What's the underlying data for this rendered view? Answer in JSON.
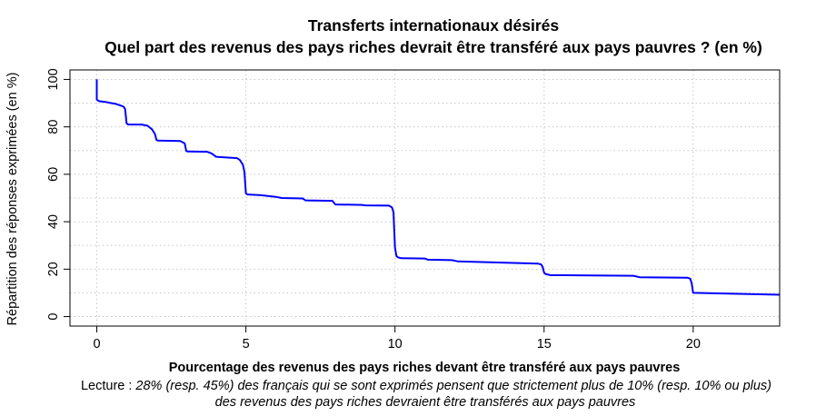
{
  "chart_data": {
    "type": "line",
    "title": "Transferts internationaux désirés",
    "subtitle": "Quel part des revenus des pays riches devrait être transféré aux pays pauvres ? (en %)",
    "xlabel": "Pourcentage des revenus des pays riches devant être transféré aux pays pauvres",
    "ylabel": "Répartition des réponses exprimées (en %)",
    "note_prefix": "Lecture : ",
    "note_line1": "28% (resp. 45%) des français qui se sont exprimés pensent que strictement plus de 10% (resp. 10% ou plus)",
    "note_line2": "des revenus des pays riches devraient être transférés aux pays pauvres",
    "xlim": [
      -0.9,
      22.9
    ],
    "ylim": [
      -4,
      104
    ],
    "xticks": [
      0,
      5,
      10,
      15,
      20
    ],
    "yticks": [
      0,
      20,
      40,
      60,
      80,
      100
    ],
    "grid": true,
    "series": [
      {
        "color": "#0000ff",
        "x": [
          0,
          0,
          0.05,
          0.1,
          0.3,
          0.5,
          0.6,
          0.8,
          0.9,
          0.95,
          1.0,
          1.05,
          1.5,
          1.7,
          1.85,
          1.95,
          2.0,
          2.05,
          2.8,
          2.95,
          3.0,
          3.05,
          3.7,
          3.85,
          4.0,
          4.7,
          4.8,
          4.9,
          4.95,
          5.0,
          5.05,
          5.5,
          6.0,
          6.2,
          6.9,
          7.0,
          7.9,
          8.0,
          8.9,
          9.0,
          9.8,
          9.9,
          9.95,
          10.0,
          10.05,
          10.1,
          10.2,
          11.0,
          11.1,
          11.9,
          12.1,
          14.8,
          14.9,
          14.95,
          15.0,
          15.05,
          15.2,
          18.0,
          18.2,
          19.8,
          19.9,
          19.95,
          20.0,
          22.9
        ],
        "y": [
          100,
          91.5,
          91.0,
          90.8,
          90.5,
          90.0,
          89.8,
          89.0,
          88.5,
          87.5,
          81.5,
          81.0,
          81.0,
          80.5,
          79.0,
          77.0,
          74.5,
          74.2,
          74.0,
          73.0,
          69.8,
          69.6,
          69.5,
          68.8,
          67.4,
          66.8,
          66.0,
          64.0,
          61.0,
          52.0,
          51.5,
          51.2,
          50.5,
          50.0,
          49.8,
          49.0,
          48.8,
          47.3,
          47.1,
          46.9,
          46.8,
          46.0,
          44.0,
          29.0,
          25.5,
          25.0,
          24.6,
          24.5,
          24.0,
          23.8,
          23.3,
          22.3,
          22.0,
          21.0,
          18.5,
          18.0,
          17.5,
          17.2,
          16.6,
          16.4,
          16.0,
          14.0,
          10.0,
          9.2
        ]
      }
    ]
  }
}
